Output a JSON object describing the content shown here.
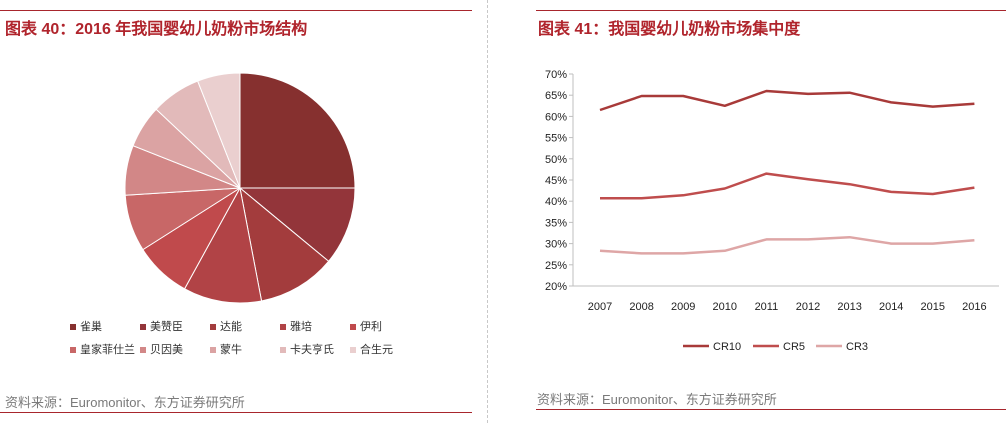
{
  "left": {
    "title": "图表 40：2016 年我国婴幼儿奶粉市场结构",
    "source": "资料来源：Euromonitor、东方证券研究所",
    "chart_data": {
      "type": "pie",
      "title": "2016 年我国婴幼儿奶粉市场结构",
      "unit": "%",
      "slices": [
        {
          "label": "雀巢",
          "value": 25,
          "color": "#86302f"
        },
        {
          "label": "美赞臣",
          "value": 11,
          "color": "#93353a"
        },
        {
          "label": "达能",
          "value": 11,
          "color": "#a33c3d"
        },
        {
          "label": "雅培",
          "value": 11,
          "color": "#b14346"
        },
        {
          "label": "伊利",
          "value": 8,
          "color": "#c04a4c"
        },
        {
          "label": "皇家菲仕兰",
          "value": 8,
          "color": "#c86767"
        },
        {
          "label": "贝因美",
          "value": 7,
          "color": "#d28787"
        },
        {
          "label": "蒙牛",
          "value": 6,
          "color": "#dba3a3"
        },
        {
          "label": "卡夫亨氏",
          "value": 7,
          "color": "#e2baba"
        },
        {
          "label": "合生元",
          "value": 6,
          "color": "#eacfcf"
        }
      ]
    }
  },
  "right": {
    "title": "图表 41：我国婴幼儿奶粉市场集中度",
    "source": "资料来源：Euromonitor、东方证券研究所",
    "chart_data": {
      "type": "line",
      "title": "我国婴幼儿奶粉市场集中度",
      "x": [
        "2007",
        "2008",
        "2009",
        "2010",
        "2011",
        "2012",
        "2013",
        "2014",
        "2015",
        "2016"
      ],
      "ylim": [
        20,
        70
      ],
      "yticks": [
        "20%",
        "25%",
        "30%",
        "35%",
        "40%",
        "45%",
        "50%",
        "55%",
        "60%",
        "65%",
        "70%"
      ],
      "series": [
        {
          "name": "CR10",
          "color": "#a83a39",
          "values": [
            61.5,
            64.8,
            64.8,
            62.5,
            66,
            65.3,
            65.6,
            63.3,
            62.3,
            63
          ]
        },
        {
          "name": "CR5",
          "color": "#bf4d4d",
          "values": [
            40.7,
            40.7,
            41.4,
            43,
            46.5,
            45.2,
            44,
            42.2,
            41.7,
            43.2
          ]
        },
        {
          "name": "CR3",
          "color": "#dea6a6",
          "values": [
            28.3,
            27.7,
            27.7,
            28.3,
            31,
            31,
            31.5,
            30,
            30,
            30.8
          ]
        }
      ]
    }
  }
}
